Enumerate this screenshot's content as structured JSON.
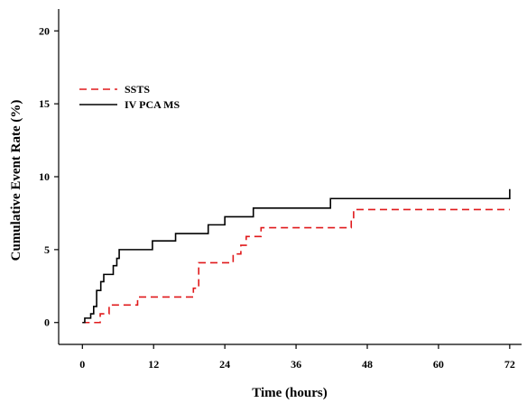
{
  "chart_data": {
    "type": "line",
    "line_shape": "step",
    "xlabel": "Time (hours)",
    "ylabel": "Cumulative Event Rate (%)",
    "xlim": [
      -4,
      74
    ],
    "ylim": [
      -1.5,
      21.5
    ],
    "xticks": [
      0,
      12,
      24,
      36,
      48,
      60,
      72
    ],
    "yticks": [
      0,
      5,
      10,
      15,
      20
    ],
    "xtick_labels": [
      "0",
      "12",
      "24",
      "36",
      "48",
      "60",
      "72"
    ],
    "ytick_labels": [
      "0",
      "5",
      "10",
      "15",
      "20"
    ],
    "grid": false,
    "legend_position": "top-left",
    "series": [
      {
        "name": "SSTS",
        "color": "#e0191b",
        "dash": "dashed",
        "x": [
          0,
          3,
          4.5,
          9.3,
          18.7,
          19.6,
          24,
          25.4,
          26.7,
          27.6,
          30.1,
          45.3,
          45.7,
          72
        ],
        "y": [
          0,
          0.6,
          1.2,
          1.75,
          2.35,
          4.1,
          4.1,
          4.7,
          5.3,
          5.9,
          6.5,
          7.1,
          7.75,
          7.75
        ]
      },
      {
        "name": "IV PCA MS",
        "color": "#000000",
        "dash": "solid",
        "x": [
          0,
          0.4,
          1.4,
          1.9,
          2.4,
          3.1,
          3.6,
          5.2,
          5.8,
          6.2,
          11.8,
          15.7,
          21.2,
          24,
          26.8,
          28.8,
          41.8,
          72
        ],
        "y": [
          0,
          0.3,
          0.6,
          1.1,
          2.2,
          2.8,
          3.3,
          3.9,
          4.4,
          5.0,
          5.6,
          6.1,
          6.7,
          7.25,
          7.25,
          7.85,
          8.5,
          9.15
        ]
      }
    ]
  }
}
